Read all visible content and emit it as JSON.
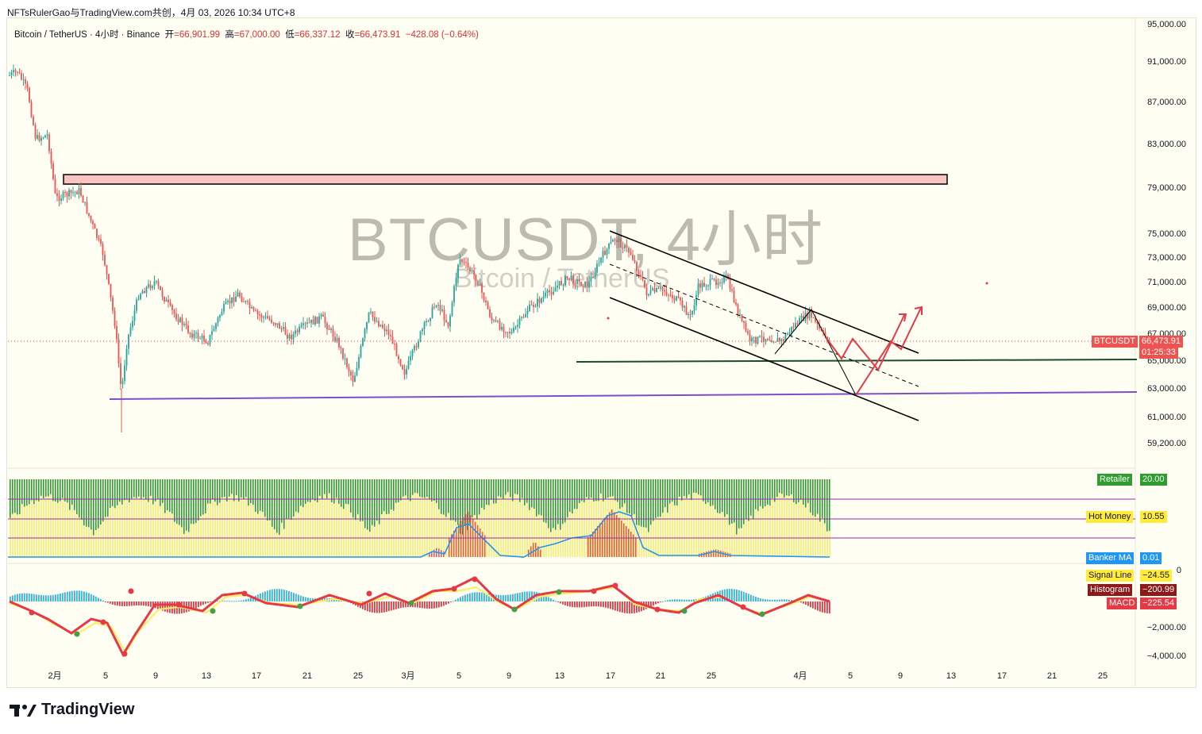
{
  "header": {
    "title": "NFTsRulerGao与TradingView.com共创，4月 03, 2026 10:34 UTC+8"
  },
  "symbol_line": {
    "name": "Bitcoin / TetherUS · 4小时 · Binance",
    "open_label": "开",
    "open": "=66,901.99",
    "high_label": "高",
    "high": "=67,000.00",
    "low_label": "低",
    "low": "=66,337.12",
    "close_label": "收",
    "close": "=66,473.91",
    "change": "−428.08 (−0.64%)"
  },
  "watermark": {
    "main": "BTCUSDT, 4小时",
    "sub": "Bitcoin / TetherUS"
  },
  "price_axis": [
    "95,000.00",
    "91,000.00",
    "87,000.00",
    "83,000.00",
    "79,000.00",
    "75,000.00",
    "73,000.00",
    "71,000.00",
    "69,000.00",
    "67,000.00",
    "65,000.00",
    "63,000.00",
    "61,000.00",
    "59,200.00"
  ],
  "indicator_axis": [
    "0",
    "−2,000.00",
    "−4,000.00"
  ],
  "time_axis": [
    "2月",
    "5",
    "9",
    "13",
    "17",
    "21",
    "25",
    "3月",
    "5",
    "9",
    "13",
    "17",
    "21",
    "25",
    "4月",
    "5",
    "9",
    "13",
    "17",
    "21",
    "25"
  ],
  "price_tag": {
    "symbol": "BTCUSDT",
    "price": "66,473.91",
    "countdown": "01:25:33"
  },
  "legend": {
    "retailer_label": "Retailer",
    "retailer_value": "20.00",
    "hot_money_label": "Hot Money",
    "hot_money_value": "10.55",
    "banker_ma_label": "Banker MA",
    "banker_ma_value": "0.01",
    "signal_label": "Signal Line",
    "signal_value": "−24.55",
    "histogram_label": "Histogram",
    "histogram_value": "−200.99",
    "macd_label": "MACD",
    "macd_value": "−225.54"
  },
  "footer": {
    "brand": "TradingView"
  },
  "colors": {
    "up": "#26a69a",
    "down": "#ef5350",
    "zone": "#f8c4c0",
    "support_green": "#1b4d2e",
    "support_purple": "#7b4fc9",
    "projection": "#e53946"
  }
}
